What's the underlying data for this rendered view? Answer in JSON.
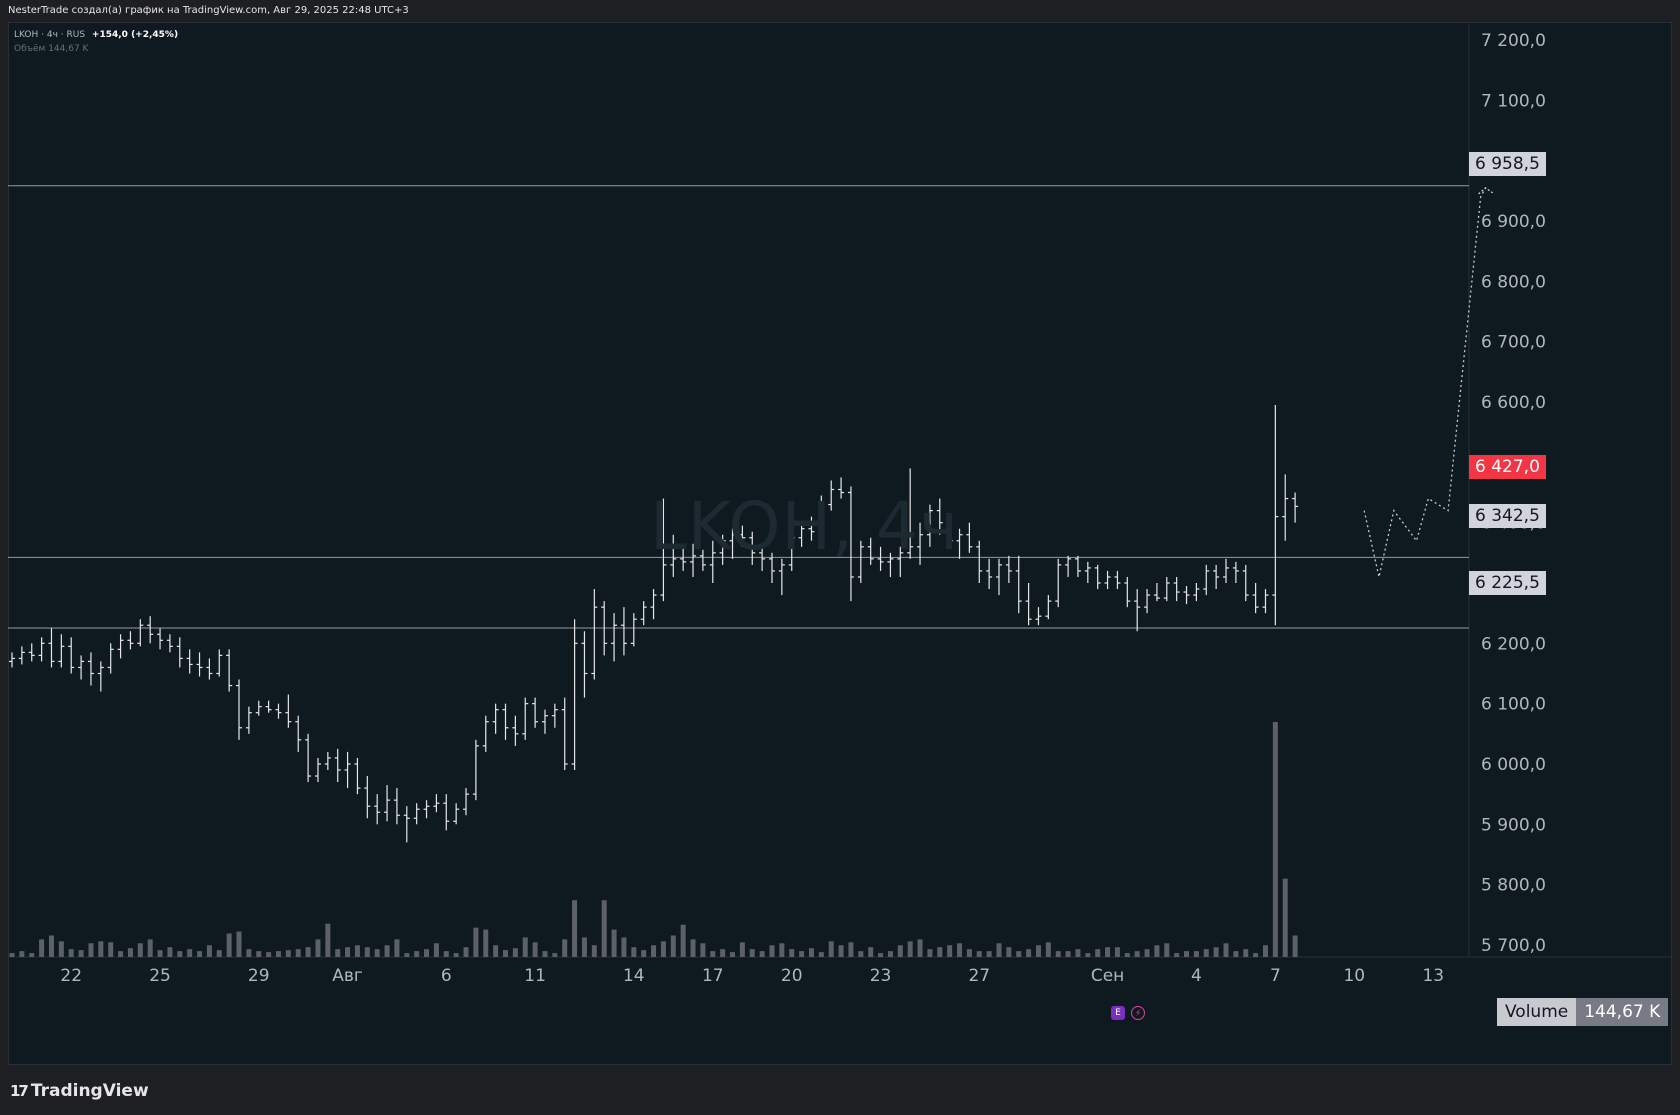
{
  "header": {
    "credit": "NesterTrade создал(а) график на TradingView.com, Авг 29, 2025 22:48 UTC+3"
  },
  "legend": {
    "symbol": "LKOH · 4ч · RUS",
    "change": "+154,0 (+2,45%)",
    "volume_label": "Объём",
    "volume_value": "144,67 K"
  },
  "watermark": "LKOH, 4ч",
  "price_tags": {
    "top_level": "6 958,5",
    "current": "6 427,0",
    "mid_level": "6 342,5",
    "low_level": "6 225,5"
  },
  "volume_tag": {
    "label": "Volume",
    "value": "144,67 K"
  },
  "events": {
    "earnings": "E",
    "dividend": "⚡"
  },
  "brand": {
    "name": "TradingView",
    "logo": "17"
  },
  "colors": {
    "background": "#0e1a20",
    "bar": "#e6e6e6",
    "level_line": "#9598a1",
    "current_price": "#f23645",
    "volume": "#5d6067",
    "projection": "#c8cad0"
  },
  "chart_data": {
    "type": "ohlc",
    "symbol": "LKOH",
    "timeframe": "4ч",
    "y_axis": {
      "ticks": [
        7200,
        7100,
        7000,
        6900,
        6800,
        6700,
        6600,
        6500,
        6400,
        6300,
        6200,
        6100,
        6000,
        5900,
        5800,
        5700
      ],
      "tick_labels": [
        "7 200,0",
        "7 100,0",
        "7 000,0",
        "6 900,0",
        "6 800,0",
        "6 700,0",
        "6 600,0",
        "6 500,0",
        "6 400,0",
        "6 300,0",
        "6 200,0",
        "6 100,0",
        "6 000,0",
        "5 900,0",
        "5 800,0",
        "5 700,0"
      ],
      "range": [
        5680,
        7230
      ]
    },
    "x_axis": {
      "tick_labels": [
        "22",
        "25",
        "29",
        "Авг",
        "6",
        "11",
        "14",
        "17",
        "20",
        "23",
        "27",
        "Сен",
        "4",
        "7",
        "10",
        "13"
      ],
      "tick_bar_index": [
        6,
        15,
        25,
        34,
        44,
        53,
        63,
        71,
        79,
        88,
        98,
        111,
        120,
        128,
        136,
        144
      ]
    },
    "horizontal_levels": [
      6958.5,
      6342.5,
      6225.5
    ],
    "current_price": 6427.0,
    "ohlc": [
      [
        6170,
        6185,
        6160,
        6175
      ],
      [
        6175,
        6195,
        6165,
        6185
      ],
      [
        6185,
        6200,
        6170,
        6180
      ],
      [
        6180,
        6210,
        6170,
        6200
      ],
      [
        6200,
        6225,
        6160,
        6170
      ],
      [
        6170,
        6215,
        6160,
        6195
      ],
      [
        6195,
        6210,
        6150,
        6160
      ],
      [
        6160,
        6180,
        6140,
        6170
      ],
      [
        6170,
        6185,
        6130,
        6150
      ],
      [
        6150,
        6170,
        6120,
        6160
      ],
      [
        6160,
        6200,
        6150,
        6190
      ],
      [
        6190,
        6215,
        6175,
        6205
      ],
      [
        6205,
        6220,
        6190,
        6200
      ],
      [
        6200,
        6240,
        6195,
        6230
      ],
      [
        6230,
        6245,
        6200,
        6215
      ],
      [
        6215,
        6225,
        6190,
        6205
      ],
      [
        6205,
        6215,
        6185,
        6195
      ],
      [
        6195,
        6210,
        6160,
        6175
      ],
      [
        6175,
        6190,
        6150,
        6165
      ],
      [
        6165,
        6185,
        6145,
        6160
      ],
      [
        6160,
        6175,
        6140,
        6150
      ],
      [
        6150,
        6190,
        6145,
        6180
      ],
      [
        6180,
        6190,
        6120,
        6130
      ],
      [
        6130,
        6140,
        6040,
        6060
      ],
      [
        6060,
        6095,
        6050,
        6085
      ],
      [
        6085,
        6105,
        6080,
        6095
      ],
      [
        6095,
        6105,
        6085,
        6090
      ],
      [
        6090,
        6100,
        6075,
        6085
      ],
      [
        6085,
        6115,
        6060,
        6070
      ],
      [
        6070,
        6080,
        6020,
        6040
      ],
      [
        6040,
        6050,
        5970,
        5980
      ],
      [
        5980,
        6010,
        5970,
        6000
      ],
      [
        6000,
        6020,
        5990,
        6010
      ],
      [
        6010,
        6025,
        5970,
        5990
      ],
      [
        5990,
        6020,
        5960,
        6000
      ],
      [
        6000,
        6010,
        5950,
        5960
      ],
      [
        5960,
        5980,
        5910,
        5930
      ],
      [
        5930,
        5950,
        5900,
        5920
      ],
      [
        5920,
        5965,
        5905,
        5940
      ],
      [
        5940,
        5960,
        5900,
        5915
      ],
      [
        5915,
        5930,
        5870,
        5910
      ],
      [
        5910,
        5935,
        5900,
        5925
      ],
      [
        5925,
        5940,
        5910,
        5930
      ],
      [
        5930,
        5950,
        5920,
        5935
      ],
      [
        5935,
        5950,
        5890,
        5905
      ],
      [
        5905,
        5935,
        5900,
        5925
      ],
      [
        5925,
        5960,
        5915,
        5950
      ],
      [
        5950,
        6040,
        5940,
        6030
      ],
      [
        6030,
        6080,
        6020,
        6070
      ],
      [
        6070,
        6100,
        6050,
        6090
      ],
      [
        6090,
        6100,
        6040,
        6060
      ],
      [
        6060,
        6080,
        6030,
        6050
      ],
      [
        6050,
        6110,
        6040,
        6100
      ],
      [
        6100,
        6110,
        6060,
        6070
      ],
      [
        6070,
        6090,
        6050,
        6080
      ],
      [
        6080,
        6100,
        6060,
        6090
      ],
      [
        6090,
        6110,
        5990,
        6000
      ],
      [
        6000,
        6240,
        5990,
        6200
      ],
      [
        6200,
        6220,
        6110,
        6150
      ],
      [
        6150,
        6290,
        6140,
        6260
      ],
      [
        6260,
        6270,
        6180,
        6200
      ],
      [
        6200,
        6250,
        6170,
        6230
      ],
      [
        6230,
        6260,
        6180,
        6200
      ],
      [
        6200,
        6250,
        6195,
        6240
      ],
      [
        6240,
        6270,
        6230,
        6260
      ],
      [
        6260,
        6290,
        6240,
        6280
      ],
      [
        6280,
        6440,
        6270,
        6330
      ],
      [
        6330,
        6380,
        6310,
        6340
      ],
      [
        6340,
        6360,
        6320,
        6335
      ],
      [
        6335,
        6365,
        6310,
        6345
      ],
      [
        6345,
        6355,
        6320,
        6330
      ],
      [
        6330,
        6370,
        6300,
        6350
      ],
      [
        6350,
        6380,
        6330,
        6370
      ],
      [
        6370,
        6390,
        6340,
        6380
      ],
      [
        6380,
        6395,
        6360,
        6375
      ],
      [
        6375,
        6385,
        6330,
        6350
      ],
      [
        6350,
        6365,
        6320,
        6340
      ],
      [
        6340,
        6350,
        6300,
        6320
      ],
      [
        6320,
        6340,
        6280,
        6330
      ],
      [
        6330,
        6385,
        6320,
        6375
      ],
      [
        6375,
        6400,
        6360,
        6390
      ],
      [
        6390,
        6410,
        6370,
        6385
      ],
      [
        6385,
        6445,
        6375,
        6430
      ],
      [
        6430,
        6470,
        6420,
        6455
      ],
      [
        6455,
        6475,
        6440,
        6450
      ],
      [
        6450,
        6460,
        6270,
        6310
      ],
      [
        6310,
        6370,
        6300,
        6360
      ],
      [
        6360,
        6375,
        6330,
        6340
      ],
      [
        6340,
        6360,
        6320,
        6335
      ],
      [
        6335,
        6350,
        6310,
        6340
      ],
      [
        6340,
        6360,
        6310,
        6350
      ],
      [
        6350,
        6490,
        6340,
        6360
      ],
      [
        6360,
        6400,
        6330,
        6380
      ],
      [
        6380,
        6430,
        6360,
        6420
      ],
      [
        6420,
        6440,
        6380,
        6400
      ],
      [
        6400,
        6410,
        6360,
        6370
      ],
      [
        6370,
        6390,
        6340,
        6380
      ],
      [
        6380,
        6400,
        6350,
        6360
      ],
      [
        6360,
        6370,
        6300,
        6320
      ],
      [
        6320,
        6340,
        6290,
        6310
      ],
      [
        6310,
        6340,
        6280,
        6330
      ],
      [
        6330,
        6345,
        6300,
        6320
      ],
      [
        6320,
        6345,
        6250,
        6270
      ],
      [
        6270,
        6300,
        6230,
        6240
      ],
      [
        6240,
        6260,
        6230,
        6245
      ],
      [
        6245,
        6280,
        6240,
        6270
      ],
      [
        6270,
        6340,
        6260,
        6330
      ],
      [
        6330,
        6345,
        6310,
        6340
      ],
      [
        6340,
        6345,
        6310,
        6320
      ],
      [
        6320,
        6335,
        6300,
        6325
      ],
      [
        6325,
        6330,
        6290,
        6300
      ],
      [
        6300,
        6320,
        6290,
        6310
      ],
      [
        6310,
        6320,
        6290,
        6300
      ],
      [
        6300,
        6310,
        6260,
        6270
      ],
      [
        6270,
        6290,
        6220,
        6260
      ],
      [
        6260,
        6290,
        6250,
        6280
      ],
      [
        6280,
        6300,
        6270,
        6275
      ],
      [
        6275,
        6310,
        6270,
        6300
      ],
      [
        6300,
        6310,
        6270,
        6285
      ],
      [
        6285,
        6295,
        6265,
        6280
      ],
      [
        6280,
        6300,
        6270,
        6290
      ],
      [
        6290,
        6330,
        6280,
        6320
      ],
      [
        6320,
        6330,
        6290,
        6310
      ],
      [
        6310,
        6340,
        6300,
        6325
      ],
      [
        6325,
        6335,
        6300,
        6320
      ],
      [
        6320,
        6330,
        6270,
        6280
      ],
      [
        6280,
        6300,
        6250,
        6260
      ],
      [
        6260,
        6290,
        6250,
        6280
      ],
      [
        6280,
        6595,
        6230,
        6410
      ],
      [
        6410,
        6480,
        6370,
        6440
      ],
      [
        6440,
        6450,
        6400,
        6427
      ]
    ],
    "volume": [
      4,
      6,
      4,
      18,
      22,
      16,
      8,
      7,
      14,
      16,
      15,
      6,
      9,
      14,
      18,
      7,
      10,
      6,
      8,
      6,
      12,
      7,
      24,
      26,
      8,
      6,
      5,
      6,
      7,
      8,
      10,
      18,
      34,
      8,
      10,
      12,
      10,
      8,
      12,
      18,
      4,
      6,
      8,
      14,
      6,
      4,
      10,
      30,
      28,
      12,
      7,
      9,
      20,
      15,
      6,
      4,
      18,
      58,
      20,
      12,
      58,
      28,
      20,
      10,
      7,
      12,
      16,
      22,
      33,
      18,
      14,
      6,
      8,
      5,
      15,
      8,
      6,
      12,
      14,
      8,
      6,
      9,
      5,
      16,
      12,
      15,
      6,
      10,
      4,
      6,
      12,
      16,
      18,
      8,
      10,
      12,
      14,
      8,
      6,
      6,
      14,
      10,
      6,
      8,
      12,
      15,
      6,
      6,
      8,
      4,
      8,
      10,
      10,
      4,
      6,
      8,
      12,
      14,
      4,
      6,
      6,
      8,
      10,
      14,
      6,
      8,
      4,
      12,
      240,
      80,
      22
    ],
    "volume_last": "144,67 K",
    "projection_path": [
      [
        137,
        6420
      ],
      [
        138.5,
        6310
      ],
      [
        140,
        6420
      ],
      [
        142.3,
        6370
      ],
      [
        143.5,
        6440
      ],
      [
        145.5,
        6420
      ],
      [
        148.8,
        6940
      ],
      [
        149.3,
        6955
      ]
    ]
  }
}
